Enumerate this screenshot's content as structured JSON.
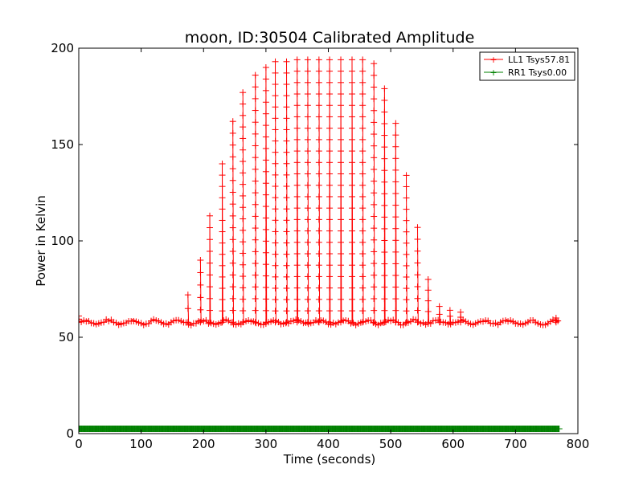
{
  "chart_data": {
    "type": "line",
    "title": "moon, ID:30504 Calibrated Amplitude",
    "xlabel": "Time (seconds)",
    "ylabel": "Power in Kelvin",
    "xlim": [
      0,
      800
    ],
    "ylim": [
      0,
      200
    ],
    "xticks": [
      0,
      100,
      200,
      300,
      400,
      500,
      600,
      700,
      800
    ],
    "yticks": [
      0,
      50,
      100,
      150,
      200
    ],
    "grid": false,
    "legend_position": "top-right",
    "series": [
      {
        "name": "LL1 Tsys57.81",
        "color": "#ff0000",
        "marker": "+",
        "baseline": 57.8,
        "x_range": [
          0,
          770
        ],
        "scan_peaks": [
          {
            "x": 0,
            "y": 61
          },
          {
            "x": 175,
            "y": 72
          },
          {
            "x": 195,
            "y": 90
          },
          {
            "x": 210,
            "y": 113
          },
          {
            "x": 230,
            "y": 140
          },
          {
            "x": 247,
            "y": 162
          },
          {
            "x": 263,
            "y": 177
          },
          {
            "x": 283,
            "y": 186
          },
          {
            "x": 300,
            "y": 190
          },
          {
            "x": 315,
            "y": 193
          },
          {
            "x": 333,
            "y": 193
          },
          {
            "x": 350,
            "y": 194
          },
          {
            "x": 367,
            "y": 194
          },
          {
            "x": 385,
            "y": 194
          },
          {
            "x": 402,
            "y": 194
          },
          {
            "x": 420,
            "y": 194
          },
          {
            "x": 438,
            "y": 194
          },
          {
            "x": 455,
            "y": 194
          },
          {
            "x": 473,
            "y": 192
          },
          {
            "x": 490,
            "y": 179
          },
          {
            "x": 508,
            "y": 161
          },
          {
            "x": 525,
            "y": 134
          },
          {
            "x": 543,
            "y": 107
          },
          {
            "x": 560,
            "y": 80
          },
          {
            "x": 578,
            "y": 66
          },
          {
            "x": 595,
            "y": 64
          },
          {
            "x": 612,
            "y": 63
          },
          {
            "x": 765,
            "y": 60
          }
        ]
      },
      {
        "name": "RR1 Tsys0.00",
        "color": "#008000",
        "marker": "+",
        "values_constant": 2.5,
        "x_range": [
          0,
          770
        ]
      }
    ]
  }
}
